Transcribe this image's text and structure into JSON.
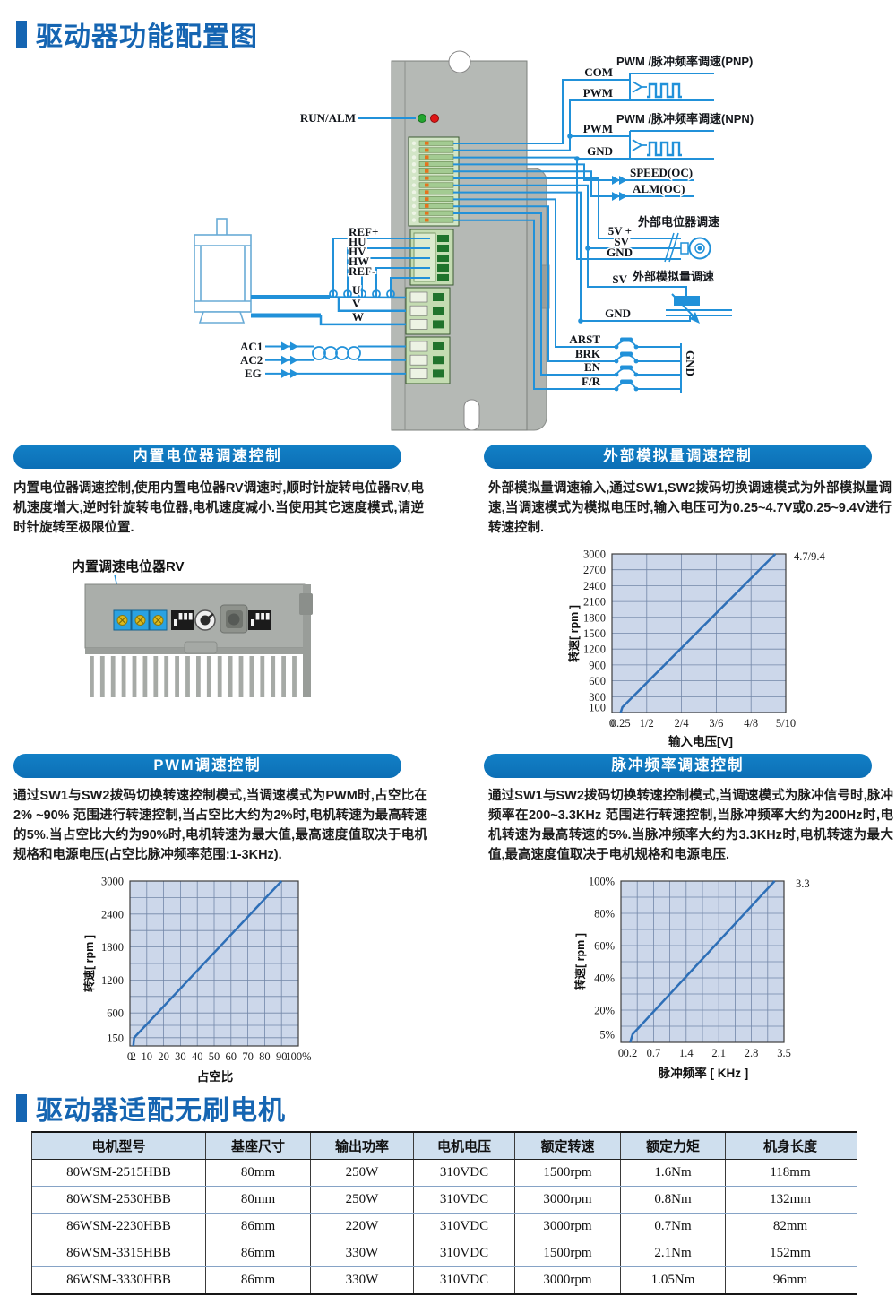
{
  "page": {
    "title_top": "驱动器功能配置图",
    "title_bottom": "驱动器适配无刷电机"
  },
  "diagram": {
    "run_alm": "RUN/ALM",
    "pnp_title": "PWM /脉冲频率调速(PNP)",
    "npn_title": "PWM /脉冲频率调速(NPN)",
    "com": "COM",
    "pwm_pnp": "PWM",
    "pwm_npn": "PWM",
    "gnd_npn": "GND",
    "speed_oc": "SPEED(OC)",
    "alm_oc": "ALM(OC)",
    "ext_pot_title": "外部电位器调速",
    "v5": "5V +",
    "sv_pot": "SV",
    "gnd_pot": "GND",
    "ext_analog_title": "外部模拟量调速",
    "sv_analog": "SV",
    "gnd_mid": "GND",
    "arst": "ARST",
    "brk": "BRK",
    "en": "EN",
    "fr": "F/R",
    "gnd_rail": "GND",
    "ref_plus": "REF+",
    "hu": "HU",
    "hv": "HV",
    "hw": "HW",
    "ref_minus": "REF-",
    "u": "U",
    "v": "V",
    "w": "W",
    "ac1": "AC1",
    "ac2": "AC2",
    "eg": "EG"
  },
  "photo": {
    "label": "内置调速电位器RV"
  },
  "sections": [
    {
      "title": "内置电位器调速控制",
      "body": "内置电位器调速控制,使用内置电位器RV调速时,顺时针旋转电位器RV,电机速度增大,逆时针旋转电位器,电机速度减小.当使用其它速度模式,请逆时针旋转至极限位置."
    },
    {
      "title": "外部模拟量调速控制",
      "body": "外部模拟量调速输入,通过SW1,SW2拨码切换调速模式为外部模拟量调速,当调速模式为模拟电压时,输入电压可为0.25~4.7V或0.25~9.4V进行转速控制."
    },
    {
      "title": "PWM调速控制",
      "body": "通过SW1与SW2拨码切换转速控制模式,当调速模式为PWM时,占空比在2% ~90% 范围进行转速控制,当占空比大约为2%时,电机转速为最高转速的5%.当占空比大约为90%时,电机转速为最大值,最高速度值取决于电机规格和电源电压(占空比脉冲频率范围:1-3KHz)."
    },
    {
      "title": "脉冲频率调速控制",
      "body": "通过SW1与SW2拨码切换转速控制模式,当调速模式为脉冲信号时,脉冲频率在200~3.3KHz 范围进行转速控制,当脉冲频率大约为200Hz时,电机转速为最高转速的5%.当脉冲频率大约为3.3KHz时,电机转速为最大值,最高速度值取决于电机规格和电源电压."
    }
  ],
  "chart_data": [
    {
      "type": "line",
      "xlabel": "输入电压[V]",
      "ylabel": "转速[ rpm ]",
      "xlim": [
        0,
        5
      ],
      "ylim": [
        0,
        3000
      ],
      "xticks": [
        {
          "v": 0,
          "l": "0"
        },
        {
          "v": 0.25,
          "l": "0.25"
        },
        {
          "v": 1,
          "l": "1/2"
        },
        {
          "v": 2,
          "l": "2/4"
        },
        {
          "v": 3,
          "l": "3/6"
        },
        {
          "v": 4,
          "l": "4/8"
        },
        {
          "v": 5,
          "l": "5/10"
        }
      ],
      "yticks": [
        {
          "v": 100,
          "l": "100"
        },
        {
          "v": 300,
          "l": "300"
        },
        {
          "v": 600,
          "l": "600"
        },
        {
          "v": 900,
          "l": "900"
        },
        {
          "v": 1200,
          "l": "1200"
        },
        {
          "v": 1500,
          "l": "1500"
        },
        {
          "v": 1800,
          "l": "1800"
        },
        {
          "v": 2100,
          "l": "2100"
        },
        {
          "v": 2400,
          "l": "2400"
        },
        {
          "v": 2700,
          "l": "2700"
        },
        {
          "v": 3000,
          "l": "3000"
        }
      ],
      "gridx": [
        1,
        2,
        3,
        4,
        5
      ],
      "gridy": [
        300,
        600,
        900,
        1200,
        1500,
        1800,
        2100,
        2400,
        2700,
        3000
      ],
      "line": [
        [
          0.25,
          0
        ],
        [
          0.3,
          100
        ],
        [
          4.7,
          3000
        ]
      ],
      "annotation": "4.7/9.4",
      "grid": true,
      "legend": "none"
    },
    {
      "type": "line",
      "xlabel": "占空比",
      "ylabel": "转速[ rpm ]",
      "xlim": [
        0,
        100
      ],
      "ylim": [
        0,
        3000
      ],
      "xticks": [
        {
          "v": 0,
          "l": "0"
        },
        {
          "v": 2,
          "l": "2"
        },
        {
          "v": 10,
          "l": "10"
        },
        {
          "v": 20,
          "l": "20"
        },
        {
          "v": 30,
          "l": "30"
        },
        {
          "v": 40,
          "l": "40"
        },
        {
          "v": 50,
          "l": "50"
        },
        {
          "v": 60,
          "l": "60"
        },
        {
          "v": 70,
          "l": "70"
        },
        {
          "v": 80,
          "l": "80"
        },
        {
          "v": 90,
          "l": "90"
        },
        {
          "v": 100,
          "l": "100%"
        }
      ],
      "yticks": [
        {
          "v": 150,
          "l": "150"
        },
        {
          "v": 600,
          "l": "600"
        },
        {
          "v": 1200,
          "l": "1200"
        },
        {
          "v": 1800,
          "l": "1800"
        },
        {
          "v": 2400,
          "l": "2400"
        },
        {
          "v": 3000,
          "l": "3000"
        }
      ],
      "gridx": [
        10,
        20,
        30,
        40,
        50,
        60,
        70,
        80,
        90
      ],
      "gridy": [
        150,
        375,
        600,
        900,
        1200,
        1500,
        1800,
        2100,
        2400,
        2700,
        3000
      ],
      "line": [
        [
          2,
          0
        ],
        [
          2.5,
          150
        ],
        [
          90,
          3000
        ]
      ],
      "annotation": "",
      "grid": true,
      "legend": "none"
    },
    {
      "type": "line",
      "xlabel": "脉冲频率 [ KHz ]",
      "ylabel": "转速[ rpm ]",
      "xlim": [
        0,
        3.5
      ],
      "ylim": [
        0,
        100
      ],
      "xticks": [
        {
          "v": 0,
          "l": "0"
        },
        {
          "v": 0.2,
          "l": "0.2"
        },
        {
          "v": 0.7,
          "l": "0.7"
        },
        {
          "v": 1.4,
          "l": "1.4"
        },
        {
          "v": 2.1,
          "l": "2.1"
        },
        {
          "v": 2.8,
          "l": "2.8"
        },
        {
          "v": 3.5,
          "l": "3.5"
        }
      ],
      "yticks": [
        {
          "v": 5,
          "l": "5%"
        },
        {
          "v": 20,
          "l": "20%"
        },
        {
          "v": 40,
          "l": "40%"
        },
        {
          "v": 60,
          "l": "60%"
        },
        {
          "v": 80,
          "l": "80%"
        },
        {
          "v": 100,
          "l": "100%"
        }
      ],
      "gridx": [
        0.35,
        0.7,
        1.05,
        1.4,
        1.75,
        2.1,
        2.45,
        2.8,
        3.15
      ],
      "gridy": [
        10,
        20,
        30,
        40,
        50,
        60,
        70,
        80,
        90
      ],
      "line": [
        [
          0.2,
          0
        ],
        [
          0.25,
          5
        ],
        [
          3.3,
          100
        ]
      ],
      "annotation": "3.3",
      "grid": true,
      "legend": "none"
    }
  ],
  "table": {
    "headers": [
      "电机型号",
      "基座尺寸",
      "输出功率",
      "电机电压",
      "额定转速",
      "额定力矩",
      "机身长度"
    ],
    "rows": [
      [
        "80WSM-2515HBB",
        "80mm",
        "250W",
        "310VDC",
        "1500rpm",
        "1.6Nm",
        "118mm"
      ],
      [
        "80WSM-2530HBB",
        "80mm",
        "250W",
        "310VDC",
        "3000rpm",
        "0.8Nm",
        "132mm"
      ],
      [
        "86WSM-2230HBB",
        "86mm",
        "220W",
        "310VDC",
        "3000rpm",
        "0.7Nm",
        "82mm"
      ],
      [
        "86WSM-3315HBB",
        "86mm",
        "330W",
        "310VDC",
        "1500rpm",
        "2.1Nm",
        "152mm"
      ],
      [
        "86WSM-3330HBB",
        "86mm",
        "330W",
        "310VDC",
        "3000rpm",
        "1.05Nm",
        "96mm"
      ]
    ]
  }
}
